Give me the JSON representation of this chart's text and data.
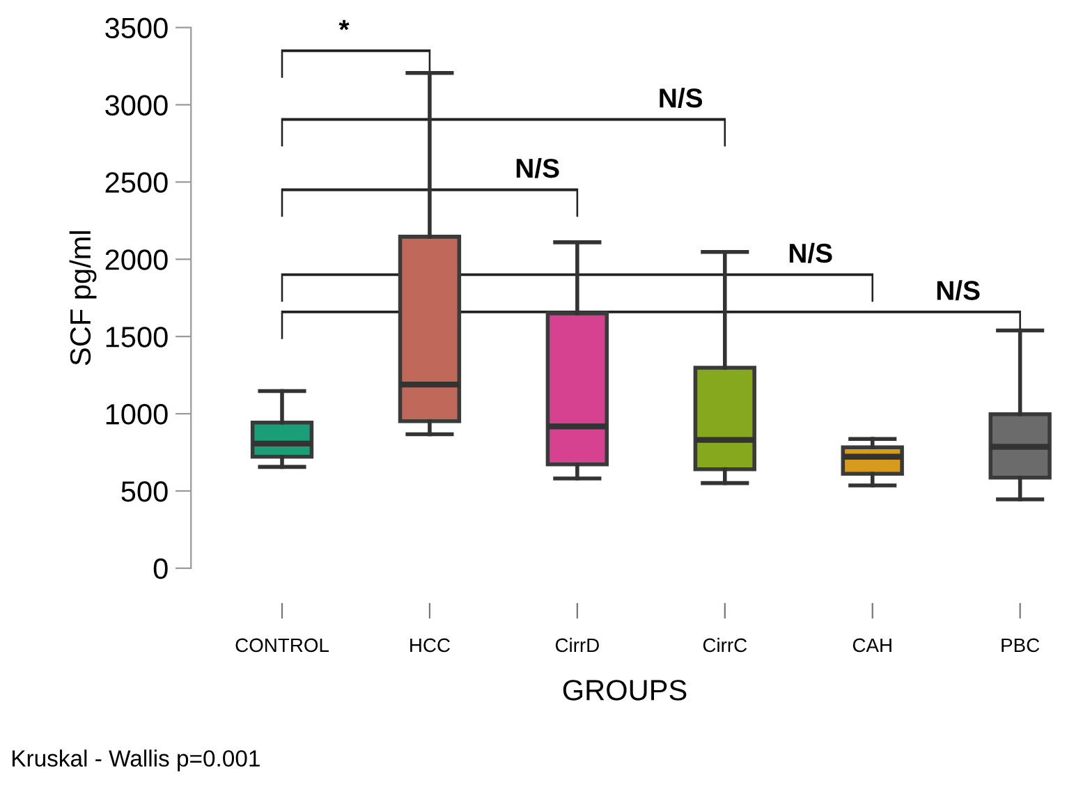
{
  "chart_data": {
    "type": "box",
    "categories": [
      "CONTROL",
      "HCC",
      "CirrD",
      "CirrC",
      "CAH",
      "PBC"
    ],
    "colors": [
      "#1a9e77",
      "#c0695a",
      "#d6428f",
      "#85a81e",
      "#d69a1d",
      "#6b6b6b"
    ],
    "boxes": [
      {
        "low": 656,
        "q1": 722,
        "median": 807,
        "q3": 943,
        "high": 1147
      },
      {
        "low": 867,
        "q1": 952,
        "median": 1189,
        "q3": 2146,
        "high": 3206
      },
      {
        "low": 581,
        "q1": 672,
        "median": 918,
        "q3": 1650,
        "high": 2110
      },
      {
        "low": 551,
        "q1": 641,
        "median": 831,
        "q3": 1298,
        "high": 2047
      },
      {
        "low": 536,
        "q1": 611,
        "median": 722,
        "q3": 783,
        "high": 837
      },
      {
        "low": 446,
        "q1": 587,
        "median": 786,
        "q3": 997,
        "high": 1539
      }
    ],
    "xlabel": "GROUPS",
    "ylabel": "SCF pg/ml",
    "ylim": [
      0,
      3500
    ],
    "yticks": [
      0,
      500,
      1000,
      1500,
      2000,
      2500,
      3000,
      3500
    ],
    "grid": false,
    "annotations": [
      "*",
      "N/S",
      "N/S",
      "N/S",
      "N/S",
      "Kruskal - Wallis p=0.001"
    ]
  }
}
